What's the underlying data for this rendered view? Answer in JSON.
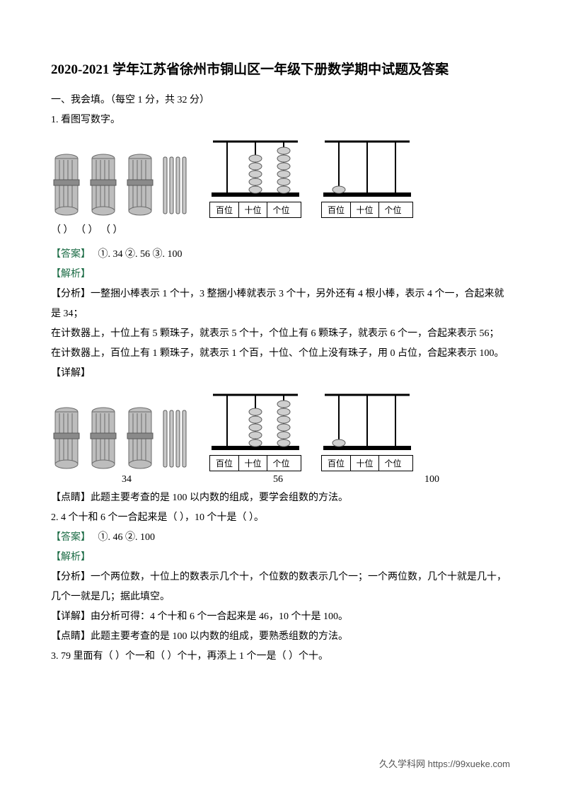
{
  "title": "2020-2021 学年江苏省徐州市铜山区一年级下册数学期中试题及答案",
  "section1": "一、我会填。（每空 1 分，共 32 分）",
  "q1": "1.  看图写数字。",
  "places": {
    "hundred": "百位",
    "ten": "十位",
    "one": "个位"
  },
  "blanks_row": "（           ）    （           ）    （           ）",
  "ans_label": "【答案】",
  "ans1": "①.  34      ②.  56      ③.  100",
  "ana_label": "【解析】",
  "fenxi_label": "【分析】",
  "fenxi1_a": "一整捆小棒表示 1 个十，3 整捆小棒就表示 3 个十，另外还有 4 根小棒，表示 4 个一，合起来就是 34；",
  "fenxi1_b": "在计数器上，十位上有 5 颗珠子，就表示 5 个十，个位上有 6 颗珠子，就表示 6 个一，合起来表示 56；",
  "fenxi1_c": "在计数器上，百位上有 1 颗珠子，就表示 1 个百，十位、个位上没有珠子，用 0 占位，合起来表示 100。",
  "xiangjie_label": "【详解】",
  "ans_vals": {
    "a": "34",
    "b": "56",
    "c": "100"
  },
  "dianjing_label": "【点睛】",
  "dianjing1": "此题主要考查的是 100 以内数的组成，要学会组数的方法。",
  "q2": "2.  4 个十和 6 个一合起来是（          ），10 个十是（          ）。",
  "ans2": "①.  46      ②.  100",
  "fenxi2": "一个两位数，十位上的数表示几个十，个位数的数表示几个一；一个两位数，几个十就是几十，几个一就是几；据此填空。",
  "xiangjie2": "由分析可得：4 个十和 6 个一合起来是 46，10 个十是 100。",
  "dianjing2": "此题主要考查的是 100 以内数的组成，要熟悉组数的方法。",
  "q3": "3.  79 里面有（          ）个一和（          ）个十，再添上 1 个一是（          ）个十。",
  "footer": "久久学科网 https://99xueke.com",
  "sticks": {
    "bundle_fill": "#bdbdbd",
    "bundle_stroke": "#6b6b6b",
    "stick_fill": "#c9c9c9",
    "stick_stroke": "#5a5a5a"
  },
  "abacus1": {
    "frame": "#000000",
    "rod": "#000000",
    "bead_fill": "#cfcfcf",
    "bead_stroke": "#5a5a5a",
    "beads": [
      0,
      5,
      6
    ]
  },
  "abacus2": {
    "frame": "#000000",
    "rod": "#000000",
    "bead_fill": "#cfcfcf",
    "bead_stroke": "#5a5a5a",
    "beads": [
      1,
      0,
      0
    ]
  }
}
